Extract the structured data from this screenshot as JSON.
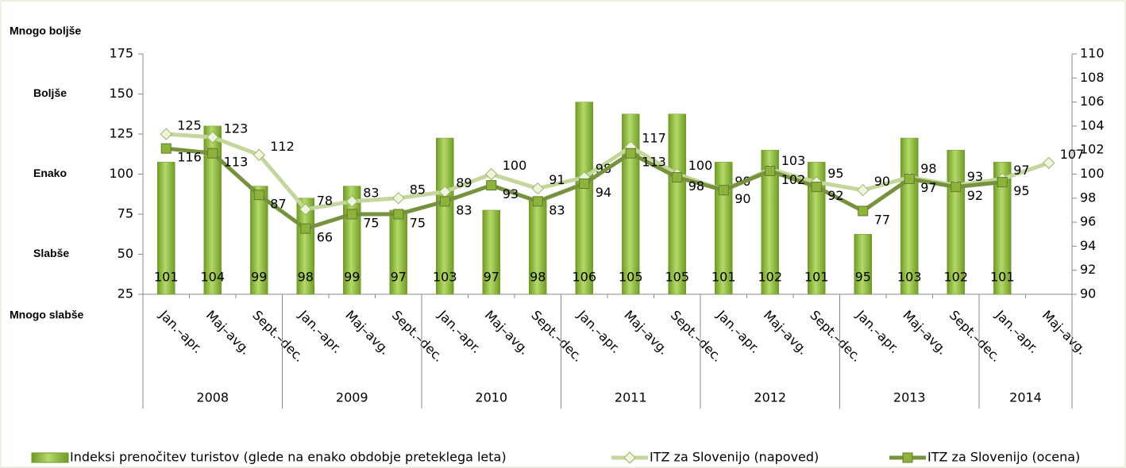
{
  "chart_data": {
    "type": "bar_line",
    "left_labels": [
      {
        "value": 175,
        "label": "Mnogo boljše"
      },
      {
        "value": 150,
        "label": "Boljše"
      },
      {
        "value": 100,
        "label": "Enako"
      },
      {
        "value": 50,
        "label": "Slabše"
      },
      {
        "value": 25,
        "label": "Mnogo slabše"
      }
    ],
    "groups": [
      {
        "label": "2008",
        "categories": [
          "Jan.–apr.",
          "Maj–avg.",
          "Sept.–dec."
        ]
      },
      {
        "label": "2009",
        "categories": [
          "Jan.–apr.",
          "Maj–avg.",
          "Sept.–dec."
        ]
      },
      {
        "label": "2010",
        "categories": [
          "Jan.–apr.",
          "Maj–avg.",
          "Sept.–dec."
        ]
      },
      {
        "label": "2011",
        "categories": [
          "Jan.–apr.",
          "Maj–avg.",
          "Sept.–dec."
        ]
      },
      {
        "label": "2012",
        "categories": [
          "Jan.–apr.",
          "Maj–avg.",
          "Sept.–dec."
        ]
      },
      {
        "label": "2013",
        "categories": [
          "Jan.–apr.",
          "Maj–avg.",
          "Sept.–dec."
        ]
      },
      {
        "label": "2014",
        "categories": [
          "Jan.–apr.",
          "Maj–avg."
        ]
      }
    ],
    "series": [
      {
        "name": "Indeksi prenočitev turistov (glede na enako obdobje preteklega leta)",
        "type": "bar",
        "axis": "y2",
        "color": "#8db33a",
        "values": [
          101,
          104,
          99,
          98,
          99,
          97,
          103,
          97,
          98,
          106,
          105,
          105,
          101,
          102,
          101,
          95,
          103,
          102,
          101,
          null
        ]
      },
      {
        "name": "ITZ za Slovenijo (napoved)",
        "type": "line",
        "marker": "diamond",
        "color": "#c3d69b",
        "values": [
          125,
          123,
          112,
          78,
          83,
          85,
          89,
          100,
          91,
          98,
          117,
          100,
          90,
          103,
          95,
          90,
          98,
          93,
          97,
          107
        ]
      },
      {
        "name": "ITZ za Slovenijo (ocena)",
        "type": "line",
        "marker": "square",
        "color": "#76923c",
        "values": [
          116,
          113,
          87,
          66,
          75,
          75,
          83,
          93,
          83,
          94,
          113,
          98,
          90,
          102,
          92,
          77,
          97,
          92,
          95,
          null
        ]
      }
    ],
    "ylim": [
      25,
      175
    ],
    "yticks": [
      25,
      50,
      75,
      100,
      125,
      150,
      175
    ],
    "y2lim": [
      90,
      110
    ],
    "y2ticks": [
      90,
      92,
      94,
      96,
      98,
      100,
      102,
      104,
      106,
      108,
      110
    ]
  }
}
